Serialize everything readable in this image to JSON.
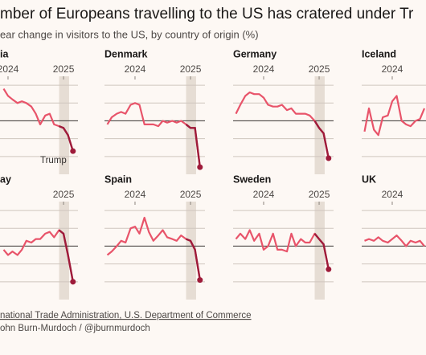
{
  "header": {
    "title": "mber of Europeans travelling to the US has cratered under Tr",
    "subtitle": "ear change in visitors to the US, by country of origin (%)"
  },
  "footer": {
    "source": "national Trade Administration, U.S. Department of Commerce",
    "credit": "ohn Burn-Murdoch / @jburnmurdoch"
  },
  "chart_data": [
    {
      "type": "line",
      "title": "ia",
      "annotation": "Trump",
      "x": [
        2023.92,
        2024.0,
        2024.08,
        2024.17,
        2024.25,
        2024.33,
        2024.42,
        2024.5,
        2024.58,
        2024.67,
        2024.75,
        2024.83,
        2024.92,
        2025.0,
        2025.08,
        2025.17
      ],
      "values": [
        18,
        14,
        12,
        10,
        11,
        10,
        8,
        4,
        -2,
        3,
        4,
        -2,
        -3,
        -4,
        -8,
        -17
      ],
      "xlim": [
        2023.45,
        2025.26
      ],
      "ylim": [
        -30,
        25
      ],
      "xticks": [
        2024,
        2025
      ],
      "yticks": [
        20,
        10,
        0,
        -10,
        -20
      ],
      "shade_xlim": [
        2024.92,
        2025.1
      ],
      "color": "#e8546a",
      "highlight_color": "#9e1b3a",
      "grid": true
    },
    {
      "type": "line",
      "title": "Denmark",
      "x": [
        2023.5,
        2023.58,
        2023.67,
        2023.75,
        2023.83,
        2023.92,
        2024.0,
        2024.08,
        2024.17,
        2024.25,
        2024.33,
        2024.42,
        2024.5,
        2024.58,
        2024.67,
        2024.75,
        2024.83,
        2024.92,
        2025.0,
        2025.08,
        2025.17
      ],
      "values": [
        -2,
        2,
        4,
        5,
        4,
        9,
        10,
        9,
        -2,
        -2,
        -2,
        -3,
        0,
        -1,
        0,
        -1,
        0,
        -2,
        -4,
        -4,
        -26
      ],
      "xlim": [
        2023.45,
        2025.26
      ],
      "ylim": [
        -30,
        25
      ],
      "xticks": [
        2024,
        2025
      ],
      "yticks": [
        20,
        10,
        0,
        -10,
        -20
      ],
      "shade_xlim": [
        2024.92,
        2025.1
      ],
      "color": "#e8546a",
      "highlight_color": "#9e1b3a",
      "grid": true
    },
    {
      "type": "line",
      "title": "Germany",
      "x": [
        2023.5,
        2023.58,
        2023.67,
        2023.75,
        2023.83,
        2023.92,
        2024.0,
        2024.08,
        2024.17,
        2024.25,
        2024.33,
        2024.42,
        2024.5,
        2024.58,
        2024.67,
        2024.75,
        2024.83,
        2024.92,
        2025.0,
        2025.08,
        2025.17
      ],
      "values": [
        4,
        9,
        14,
        16,
        15,
        15,
        13,
        9,
        8,
        8,
        9,
        6,
        7,
        4,
        4,
        4,
        3,
        0,
        -4,
        -7,
        -21
      ],
      "xlim": [
        2023.45,
        2025.26
      ],
      "ylim": [
        -30,
        25
      ],
      "xticks": [
        2024,
        2025
      ],
      "yticks": [
        20,
        10,
        0,
        -10,
        -20
      ],
      "shade_xlim": [
        2024.92,
        2025.1
      ],
      "color": "#e8546a",
      "highlight_color": "#9e1b3a",
      "grid": true
    },
    {
      "type": "line",
      "title": "Iceland",
      "x": [
        2023.5,
        2023.58,
        2023.67,
        2023.75,
        2023.83,
        2023.92,
        2024.0,
        2024.08,
        2024.17,
        2024.25,
        2024.33,
        2024.42,
        2024.5,
        2024.58
      ],
      "values": [
        -6,
        7,
        -5,
        -8,
        2,
        3,
        11,
        14,
        0,
        -2,
        -3,
        0,
        1,
        7
      ],
      "xlim": [
        2023.45,
        2025.26
      ],
      "ylim": [
        -30,
        25
      ],
      "xticks": [
        2024
      ],
      "yticks": [
        20,
        10,
        0,
        -10,
        -20
      ],
      "color": "#e8546a",
      "grid": true
    },
    {
      "type": "line",
      "title": "ay",
      "x": [
        2023.92,
        2024.0,
        2024.08,
        2024.17,
        2024.25,
        2024.33,
        2024.42,
        2024.5,
        2024.58,
        2024.67,
        2024.75,
        2024.83,
        2024.92,
        2025.0,
        2025.08,
        2025.17
      ],
      "values": [
        -2,
        -5,
        -3,
        -5,
        -2,
        3,
        2,
        4,
        4,
        7,
        8,
        5,
        9,
        7,
        -5,
        -20
      ],
      "xlim": [
        2023.45,
        2025.26
      ],
      "ylim": [
        -30,
        25
      ],
      "xticks": [
        2025
      ],
      "yticks": [
        20,
        10,
        0,
        -10,
        -20
      ],
      "shade_xlim": [
        2024.92,
        2025.1
      ],
      "color": "#e8546a",
      "highlight_color": "#9e1b3a",
      "grid": true
    },
    {
      "type": "line",
      "title": "Spain",
      "x": [
        2023.5,
        2023.58,
        2023.67,
        2023.75,
        2023.83,
        2023.92,
        2024.0,
        2024.08,
        2024.17,
        2024.25,
        2024.33,
        2024.42,
        2024.5,
        2024.58,
        2024.67,
        2024.75,
        2024.83,
        2024.92,
        2025.0,
        2025.08,
        2025.17
      ],
      "values": [
        -5,
        -3,
        0,
        3,
        2,
        10,
        11,
        7,
        16,
        8,
        3,
        6,
        9,
        5,
        4,
        3,
        6,
        4,
        3,
        -2,
        -19
      ],
      "xlim": [
        2023.45,
        2025.26
      ],
      "ylim": [
        -30,
        25
      ],
      "xticks": [
        2024,
        2025
      ],
      "yticks": [
        20,
        10,
        0,
        -10,
        -20
      ],
      "shade_xlim": [
        2024.92,
        2025.1
      ],
      "color": "#e8546a",
      "highlight_color": "#9e1b3a",
      "grid": true
    },
    {
      "type": "line",
      "title": "Sweden",
      "x": [
        2023.5,
        2023.58,
        2023.67,
        2023.75,
        2023.83,
        2023.92,
        2024.0,
        2024.08,
        2024.17,
        2024.25,
        2024.33,
        2024.42,
        2024.5,
        2024.58,
        2024.67,
        2024.75,
        2024.83,
        2024.92,
        2025.0,
        2025.08,
        2025.17
      ],
      "values": [
        4,
        7,
        4,
        9,
        3,
        7,
        -2,
        0,
        7,
        -2,
        -2,
        -3,
        7,
        0,
        4,
        2,
        2,
        7,
        4,
        1,
        -13
      ],
      "xlim": [
        2023.45,
        2025.26
      ],
      "ylim": [
        -30,
        25
      ],
      "xticks": [
        2024,
        2025
      ],
      "yticks": [
        20,
        10,
        0,
        -10,
        -20
      ],
      "shade_xlim": [
        2024.92,
        2025.1
      ],
      "color": "#e8546a",
      "highlight_color": "#9e1b3a",
      "grid": true
    },
    {
      "type": "line",
      "title": "UK",
      "x": [
        2023.5,
        2023.58,
        2023.67,
        2023.75,
        2023.83,
        2023.92,
        2024.0,
        2024.08,
        2024.17,
        2024.25,
        2024.33,
        2024.42,
        2024.5,
        2024.58
      ],
      "values": [
        3,
        4,
        3,
        5,
        3,
        2,
        4,
        6,
        3,
        0,
        3,
        2,
        3,
        0
      ],
      "xlim": [
        2023.45,
        2025.26
      ],
      "ylim": [
        -30,
        25
      ],
      "xticks": [
        2024
      ],
      "yticks": [
        20,
        10,
        0,
        -10,
        -20
      ],
      "color": "#e8546a",
      "grid": true
    }
  ]
}
